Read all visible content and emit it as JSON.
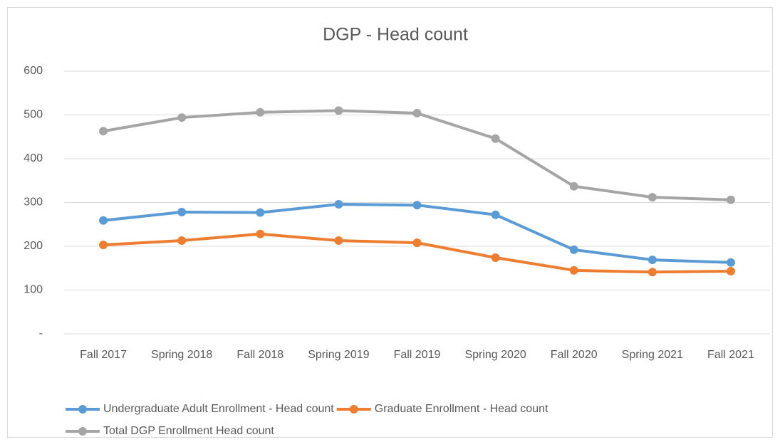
{
  "chart_data": {
    "type": "line",
    "title": "DGP - Head count",
    "categories": [
      "Fall 2017",
      "Spring 2018",
      "Fall 2018",
      "Spring 2019",
      "Fall 2019",
      "Spring 2020",
      "Fall 2020",
      "Spring 2021",
      "Fall 2021"
    ],
    "series": [
      {
        "name": "Undergraduate Adult Enrollment - Head count",
        "color": "#5b9bd5",
        "values": [
          259,
          278,
          277,
          296,
          294,
          272,
          192,
          169,
          163
        ]
      },
      {
        "name": "Graduate Enrollment - Head count",
        "color": "#ed7d31",
        "values": [
          203,
          213,
          228,
          213,
          208,
          174,
          145,
          141,
          143
        ]
      },
      {
        "name": "Total DGP Enrollment Head count",
        "color": "#a5a5a5",
        "values": [
          463,
          494,
          506,
          510,
          504,
          446,
          337,
          312,
          306
        ]
      }
    ],
    "ylim": [
      0,
      600
    ],
    "yticks": [
      {
        "value": 0,
        "label": "-"
      },
      100,
      200,
      300,
      400,
      500,
      600
    ],
    "grid": true,
    "legend": "bottom"
  }
}
